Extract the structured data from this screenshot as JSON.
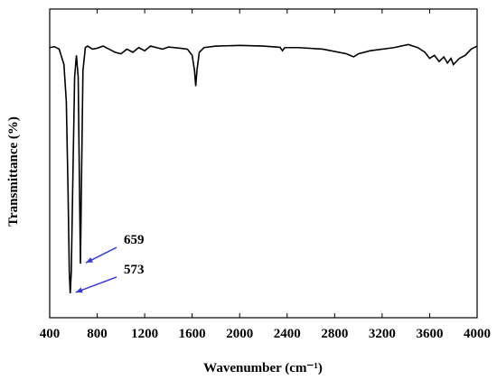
{
  "chart_data": {
    "type": "line",
    "x_label": "Wavenumber (cm⁻¹)",
    "y_label": "Transmittance (%)",
    "xlim": [
      400,
      4000
    ],
    "xticks": [
      400,
      800,
      1200,
      1600,
      2000,
      2400,
      2800,
      3200,
      3600,
      4000
    ],
    "ylim": [
      0,
      100
    ],
    "series": [
      {
        "color": "#000000",
        "x": [
          400,
          440,
          480,
          520,
          540,
          555,
          565,
          573,
          582,
          595,
          610,
          625,
          640,
          650,
          659,
          668,
          680,
          700,
          720,
          760,
          800,
          850,
          900,
          950,
          1000,
          1050,
          1100,
          1150,
          1200,
          1250,
          1300,
          1350,
          1400,
          1450,
          1500,
          1560,
          1600,
          1620,
          1630,
          1640,
          1660,
          1700,
          1800,
          2000,
          2200,
          2340,
          2360,
          2380,
          2500,
          2700,
          2900,
          2960,
          3000,
          3100,
          3300,
          3420,
          3500,
          3560,
          3600,
          3640,
          3680,
          3720,
          3750,
          3780,
          3800,
          3850,
          3900,
          3950,
          4000
        ],
        "values": [
          87.5,
          87.8,
          87,
          82,
          70,
          40,
          15,
          7.9,
          15,
          45,
          78,
          85,
          78,
          45,
          17.5,
          45,
          80,
          87.5,
          88,
          87,
          87.3,
          88,
          87,
          86,
          85.5,
          87,
          86,
          87.5,
          86.5,
          88,
          87.5,
          87,
          87.7,
          87.5,
          87.3,
          87,
          85,
          80,
          75,
          80,
          86,
          87.5,
          88,
          88.2,
          88,
          87.6,
          86.5,
          87.5,
          87.5,
          87,
          85.5,
          84.5,
          85.5,
          86.5,
          87.5,
          88.5,
          87.5,
          86,
          84,
          85,
          83,
          84.5,
          82.5,
          84,
          82,
          84,
          85,
          87,
          88
        ]
      }
    ],
    "annotations": [
      {
        "text": "659",
        "x": 659,
        "y": 17.5,
        "color": "#3b3bd6"
      },
      {
        "text": "573",
        "x": 573,
        "y": 7.9,
        "color": "#3b3bd6"
      }
    ]
  }
}
